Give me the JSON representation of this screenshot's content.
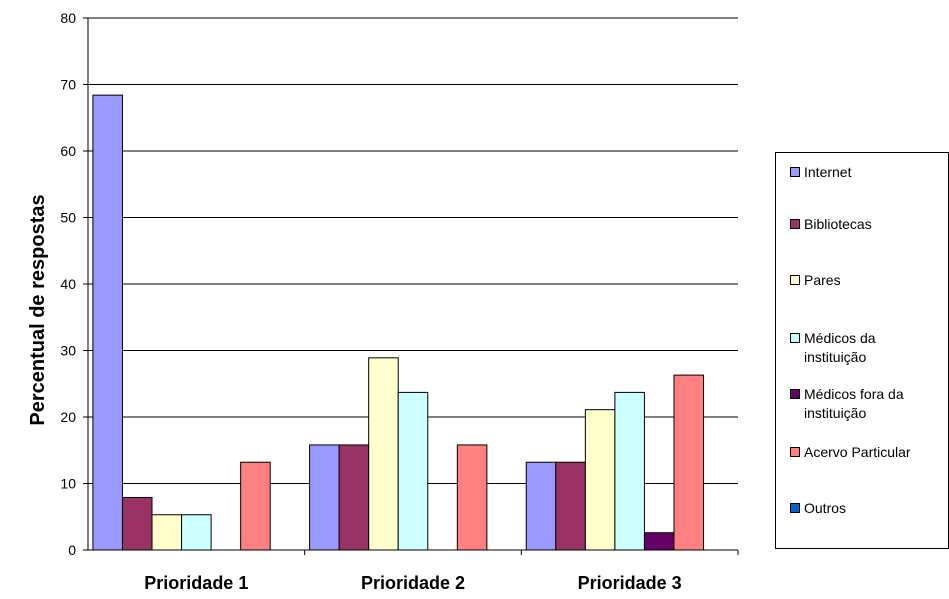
{
  "chart_data": {
    "type": "bar",
    "title": "",
    "xlabel": "",
    "ylabel": "Percentual  de  respostas",
    "ylim": [
      0,
      80
    ],
    "yticks": [
      0,
      10,
      20,
      30,
      40,
      50,
      60,
      70,
      80
    ],
    "grid": true,
    "legend_position": "right",
    "categories": [
      "Prioridade 1",
      "Prioridade 2",
      "Prioridade 3"
    ],
    "series": [
      {
        "name": "Internet",
        "color": "#9999FF",
        "values": [
          68.4,
          15.8,
          13.2
        ]
      },
      {
        "name": "Bibliotecas",
        "color": "#993366",
        "values": [
          7.9,
          15.8,
          13.2
        ]
      },
      {
        "name": "Pares",
        "color": "#FFFFCC",
        "values": [
          5.3,
          28.9,
          21.1
        ]
      },
      {
        "name": "Médicos da\ninstituição",
        "color": "#CCFFFF",
        "values": [
          5.3,
          23.7,
          23.7
        ]
      },
      {
        "name": "Médicos fora da\ninstituição",
        "color": "#660066",
        "values": [
          0,
          0,
          2.6
        ]
      },
      {
        "name": "Acervo Particular",
        "color": "#FF8080",
        "values": [
          13.2,
          15.8,
          26.3
        ]
      },
      {
        "name": "Outros",
        "color": "#0066CC",
        "values": [
          0,
          0,
          0
        ]
      }
    ]
  }
}
